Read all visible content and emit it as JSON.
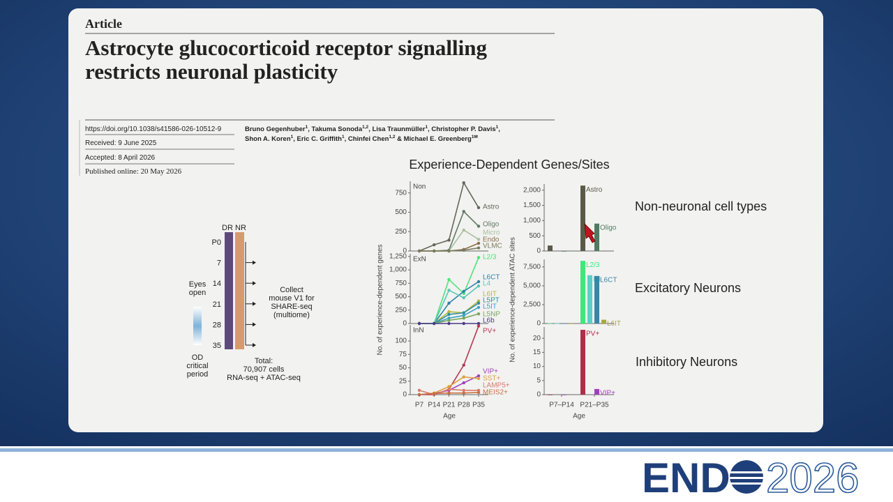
{
  "paper": {
    "kicker": "Article",
    "title": [
      "Astrocyte glucocorticoid receptor signalling",
      "restricts neuronal plasticity"
    ],
    "doi": "https://doi.org/10.1038/s41586-026-10512-9",
    "received": "Received: 9 June 2025",
    "accepted": "Accepted: 8 April 2026",
    "published": "Published online: 20 May 2026",
    "authors": [
      [
        "Bruno Gegenhuber",
        "1",
        ", Takuma Sonoda",
        "1,2",
        ", Lisa Traunmüller",
        "1",
        ", Christopher P. Davis",
        "1",
        ","
      ],
      [
        "Shon A. Koren",
        "1",
        ", Eric C. Griffith",
        "1",
        ", Chinfei Chen",
        "1,2",
        " & Michael E. Greenberg",
        "1✉"
      ]
    ]
  },
  "schematic": {
    "conditions": [
      "DR",
      "NR"
    ],
    "days": [
      "P0",
      "7",
      "14",
      "21",
      "28",
      "35"
    ],
    "eyes_open": [
      "Eyes",
      "open"
    ],
    "critical_period": [
      "OD",
      "critical",
      "period"
    ],
    "collect": [
      "Collect",
      "mouse V1 for",
      "SHARE-seq",
      "(multiome)"
    ],
    "total": [
      "Total:",
      "70,907 cells",
      "RNA-seq + ATAC-seq"
    ]
  },
  "figure_title": "Experience-Dependent Genes/Sites",
  "row_labels": [
    "Non-neuronal cell types",
    "Excitatory Neurons",
    "Inhibitory Neurons"
  ],
  "logo": {
    "left": "END",
    "right": "2026"
  },
  "chart_data": [
    {
      "type": "line",
      "ylabel": "No. of experience-dependent genes",
      "xlabel": "Age",
      "categories": [
        "P7",
        "P14",
        "P21",
        "P28",
        "P35"
      ],
      "panels": [
        {
          "label": "Non",
          "ylim": [
            0,
            900
          ],
          "yticks": [
            0,
            250,
            500,
            750
          ],
          "series": [
            {
              "name": "Astro",
              "color": "#66665a",
              "values": [
                0,
                80,
                140,
                880,
                560
              ]
            },
            {
              "name": "Oligo",
              "color": "#5f7a66",
              "values": [
                0,
                0,
                10,
                510,
                320
              ]
            },
            {
              "name": "Micro",
              "color": "#a9c0a0",
              "values": [
                0,
                0,
                0,
                270,
                150
              ]
            },
            {
              "name": "Endo",
              "color": "#8a6e4a",
              "values": [
                0,
                0,
                0,
                20,
                100
              ]
            },
            {
              "name": "VLMC",
              "color": "#7a7a5e",
              "values": [
                0,
                0,
                0,
                10,
                40
              ]
            }
          ]
        },
        {
          "label": "ExN",
          "ylim": [
            0,
            1300
          ],
          "yticks": [
            0,
            250,
            500,
            750,
            {
              "value": 1000,
              "label": "1,000"
            },
            {
              "value": 1250,
              "label": "1,250"
            }
          ],
          "series": [
            {
              "name": "L2/3",
              "color": "#4de37a",
              "values": [
                0,
                0,
                820,
                560,
                1230
              ]
            },
            {
              "name": "L6CT",
              "color": "#2f7fa8",
              "values": [
                0,
                0,
                380,
                600,
                780
              ]
            },
            {
              "name": "L4",
              "color": "#58c6b5",
              "values": [
                0,
                0,
                620,
                480,
                700
              ]
            },
            {
              "name": "L6IT",
              "color": "#b6b83b",
              "values": [
                0,
                0,
                220,
                200,
                420
              ]
            },
            {
              "name": "L5PT",
              "color": "#2b8fa3",
              "values": [
                0,
                0,
                170,
                200,
                380
              ]
            },
            {
              "name": "L5IT",
              "color": "#3aa3c2",
              "values": [
                0,
                0,
                100,
                150,
                300
              ]
            },
            {
              "name": "L5NP",
              "color": "#7aa65a",
              "values": [
                0,
                0,
                60,
                100,
                180
              ]
            },
            {
              "name": "L6b",
              "color": "#4b3a8a",
              "values": [
                0,
                0,
                0,
                0,
                0
              ]
            }
          ]
        },
        {
          "label": "InN",
          "ylim": [
            0,
            130
          ],
          "yticks": [
            0,
            25,
            50,
            75,
            100
          ],
          "series": [
            {
              "name": "PV+",
              "color": "#b73850",
              "values": [
                0,
                0,
                10,
                55,
                128
              ]
            },
            {
              "name": "VIP+",
              "color": "#a03fbf",
              "values": [
                0,
                2,
                8,
                22,
                35
              ]
            },
            {
              "name": "SST+",
              "color": "#e0a040",
              "values": [
                0,
                3,
                15,
                33,
                30
              ]
            },
            {
              "name": "LAMP5+",
              "color": "#d97a6a",
              "values": [
                8,
                0,
                10,
                8,
                8
              ]
            },
            {
              "name": "MEIS2+",
              "color": "#c87040",
              "values": [
                0,
                2,
                3,
                3,
                4
              ]
            }
          ]
        }
      ]
    },
    {
      "type": "bar",
      "ylabel": "No. of experience-dependent ATAC sites",
      "xlabel": "Age",
      "categories": [
        "P7–P14",
        "P21–P35"
      ],
      "panels": [
        {
          "ylim": [
            0,
            2200
          ],
          "yticks": [
            0,
            500,
            {
              "value": 1000,
              "label": "1,000"
            },
            {
              "value": 1500,
              "label": "1,500"
            },
            {
              "value": 2000,
              "label": "2,000"
            }
          ],
          "series": [
            {
              "name": "Astro",
              "color": "#5a5a48",
              "values": [
                180,
                2150
              ]
            },
            {
              "name": "Oligo",
              "color": "#4f7a62",
              "values": [
                0,
                900
              ]
            }
          ]
        },
        {
          "ylim": [
            0,
            8500
          ],
          "yticks": [
            0,
            {
              "value": 2500,
              "label": "2,500"
            },
            {
              "value": 5000,
              "label": "5,000"
            },
            {
              "value": 7500,
              "label": "7,500"
            }
          ],
          "series": [
            {
              "name": "L2/3",
              "color": "#3ee87a",
              "values": [
                50,
                8300
              ]
            },
            {
              "name": "L4",
              "color": "#5ad0c8",
              "values": [
                30,
                6400
              ]
            },
            {
              "name": "L6CT",
              "color": "#3a86a8",
              "values": [
                20,
                6300
              ]
            },
            {
              "name": "L6IT",
              "color": "#a8a840",
              "values": [
                10,
                500
              ]
            }
          ]
        },
        {
          "ylim": [
            0,
            24
          ],
          "yticks": [
            0,
            5,
            10,
            15,
            20
          ],
          "series": [
            {
              "name": "PV+",
              "color": "#b02e48",
              "values": [
                0,
                23
              ]
            },
            {
              "name": "VIP+",
              "color": "#a040c0",
              "values": [
                0,
                2
              ]
            }
          ]
        }
      ]
    }
  ]
}
